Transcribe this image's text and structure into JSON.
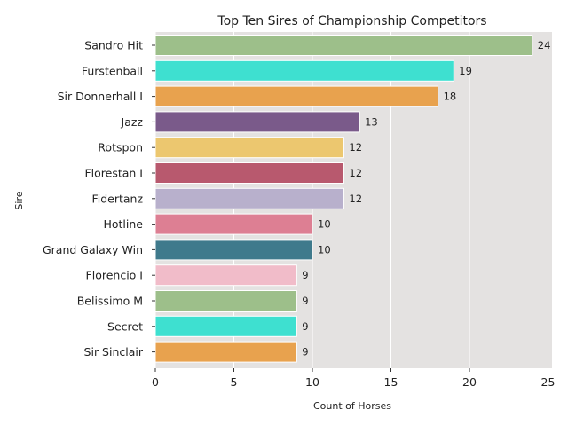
{
  "chart_data": {
    "type": "bar",
    "orientation": "horizontal",
    "title": "Top Ten Sires of Championship Competitors",
    "xlabel": "Count of Horses",
    "ylabel": "Sire",
    "xlim": [
      0,
      25
    ],
    "xticks": [
      0,
      5,
      10,
      15,
      20,
      25
    ],
    "grid": "x",
    "categories": [
      "Sandro Hit",
      "Furstenball",
      "Sir Donnerhall I",
      "Jazz",
      "Rotspon",
      "Florestan I",
      "Fidertanz",
      "Hotline",
      "Grand Galaxy Win",
      "Florencio I",
      "Belissimo M",
      "Secret",
      "Sir Sinclair"
    ],
    "values": [
      24,
      19,
      18,
      13,
      12,
      12,
      12,
      10,
      10,
      9,
      9,
      9,
      9
    ],
    "bar_colors": [
      "#9dbf8a",
      "#3ee0d0",
      "#e8a24e",
      "#7a5a8a",
      "#ecc76f",
      "#b8596e",
      "#b8b0cc",
      "#dd7f93",
      "#3f7a8c",
      "#f1bcc9",
      "#9dbf8a",
      "#3ee0d0",
      "#e8a24e"
    ],
    "plot_background": "#e4e2e1"
  }
}
